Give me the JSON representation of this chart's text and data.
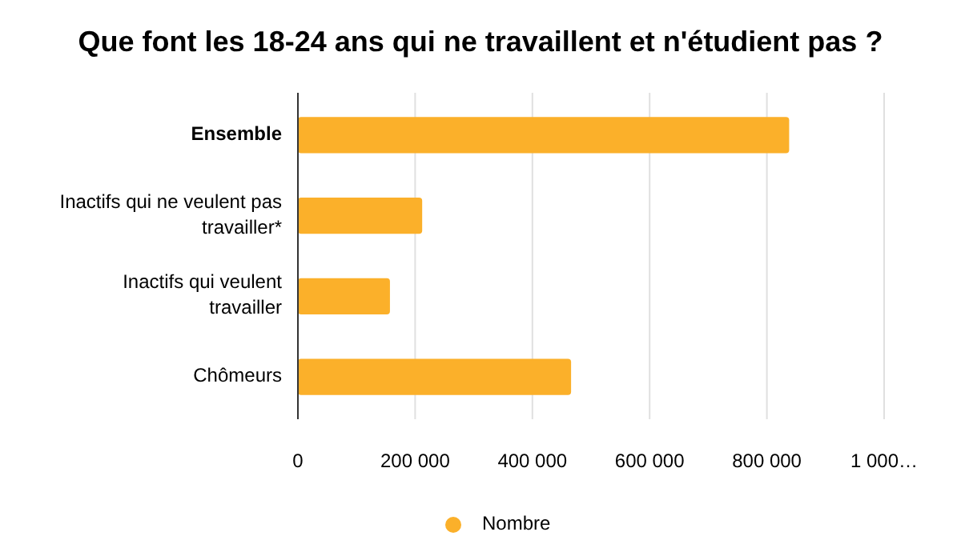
{
  "chart_data": {
    "type": "bar",
    "orientation": "horizontal",
    "title": "Que font les 18-24 ans qui ne travaillent et n'étudient pas ?",
    "categories": [
      "Ensemble",
      "Inactifs qui ne veulent pas travailler*",
      "Inactifs qui veulent travailler",
      "Chômeurs"
    ],
    "series": [
      {
        "name": "Nombre",
        "color": "#fbb02a",
        "values": [
          838000,
          212000,
          157000,
          466000
        ]
      }
    ],
    "xlim": [
      0,
      1000000
    ],
    "xticks": [
      0,
      {
        "value": 200000,
        "label": "200 000"
      },
      {
        "value": 400000,
        "label": "400 000"
      },
      {
        "value": 600000,
        "label": "600 000"
      },
      {
        "value": 800000,
        "label": "800 000"
      },
      {
        "value": 1000000,
        "label": "1 000…"
      }
    ],
    "grid": "x",
    "legend": "bottom"
  }
}
